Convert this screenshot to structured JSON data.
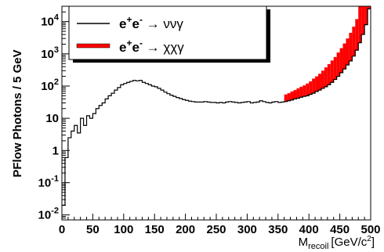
{
  "chart_data": {
    "type": "line",
    "title": "",
    "xlabel": "M",
    "xlabel_sub": "recoil",
    "xlabel_unit": "[GeV/c",
    "xlabel_unit_sup": "2",
    "xlabel_unit_end": "]",
    "ylabel": "PFlow Photons / 5 GeV",
    "xlim": [
      0,
      500
    ],
    "ylim": [
      0.007,
      30000
    ],
    "yscale": "log",
    "grid": false,
    "legend_position": "top-left",
    "x_ticks": [
      0,
      50,
      100,
      150,
      200,
      250,
      300,
      350,
      400,
      450,
      500
    ],
    "x_tick_labels": [
      "0",
      "50",
      "100",
      "150",
      "200",
      "250",
      "300",
      "350",
      "400",
      "450",
      "500"
    ],
    "y_ticks": [
      {
        "value": 0.01,
        "base": "10",
        "exp": "-2"
      },
      {
        "value": 0.1,
        "base": "10",
        "exp": "-1"
      },
      {
        "value": 1,
        "base": "1",
        "exp": ""
      },
      {
        "value": 10,
        "base": "10",
        "exp": ""
      },
      {
        "value": 100,
        "base": "10",
        "exp": "2"
      },
      {
        "value": 1000,
        "base": "10",
        "exp": "3"
      },
      {
        "value": 10000,
        "base": "10",
        "exp": "4"
      }
    ],
    "legend": [
      {
        "id": "nunugamma",
        "sup": "+",
        "sup2": "-",
        "text": " → ννγ",
        "color": "#000000"
      },
      {
        "id": "chichigamma",
        "sup": "+",
        "sup2": "-",
        "text": " → χχγ",
        "color": "#ff0000"
      }
    ],
    "series": [
      {
        "name": "e+e- → ννγ",
        "color": "#000000",
        "bin_width": 5,
        "bin_edges_start": 0,
        "values": [
          0.02,
          0.6,
          2.5,
          4,
          6,
          3.5,
          10,
          6,
          12,
          10,
          14,
          20,
          25,
          30,
          40,
          50,
          60,
          75,
          90,
          110,
          120,
          130,
          140,
          150,
          145,
          150,
          130,
          120,
          110,
          100,
          95,
          85,
          75,
          65,
          58,
          52,
          48,
          44,
          41,
          38,
          36,
          34,
          33,
          32,
          32,
          32,
          33,
          32,
          31,
          31,
          30,
          31,
          30,
          32,
          33,
          32,
          31,
          30,
          31,
          32,
          33,
          30,
          31,
          32,
          35,
          33,
          31,
          30,
          32,
          33,
          31,
          32,
          33,
          35,
          37,
          40,
          42,
          45,
          48,
          50,
          55,
          60,
          68,
          75,
          85,
          95,
          110,
          130,
          160,
          200,
          260,
          340,
          450,
          600,
          850,
          1300,
          2200,
          4000,
          8000,
          25000
        ]
      },
      {
        "name": "e+e- → χχγ",
        "color": "#ff0000",
        "bin_width": 5,
        "bin_edges_start": 360,
        "values": [
          55,
          60,
          68,
          75,
          85,
          95,
          105,
          120,
          140,
          170,
          200,
          240,
          300,
          380,
          480,
          620,
          800,
          1100,
          1500,
          2100,
          3000,
          4500,
          7000,
          12000,
          30000,
          30000,
          30000,
          30000
        ]
      }
    ]
  }
}
